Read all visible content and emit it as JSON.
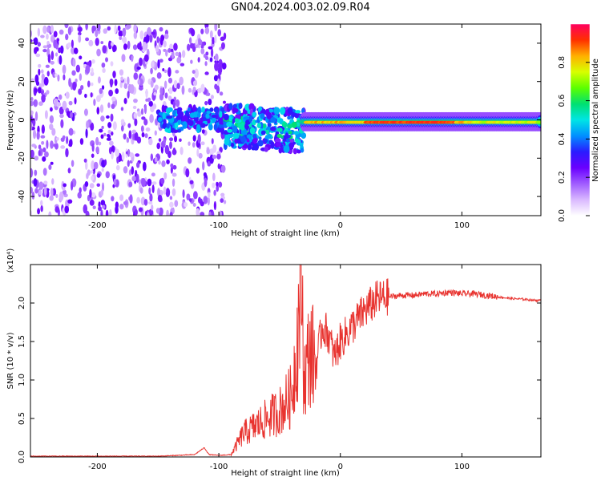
{
  "title": "GN04.2024.003.02.09.R04",
  "colors": {
    "snr_line": "#e8332f",
    "colormap": [
      "#ffffff",
      "#d9b8ff",
      "#a05cff",
      "#6a00ff",
      "#2a1bff",
      "#0090ff",
      "#00e5e5",
      "#00e070",
      "#5cff00",
      "#d8ff00",
      "#ffb000",
      "#ff3000",
      "#ff0060"
    ]
  },
  "chart_data": [
    {
      "type": "heatmap",
      "title": "GN04.2024.003.02.09.R04",
      "xlabel": "Height of straight line (km)",
      "ylabel": "Frequency (Hz)",
      "xlim": [
        -255,
        165
      ],
      "ylim": [
        -50,
        50
      ],
      "xticks": [
        -200,
        -100,
        0,
        100
      ],
      "yticks": [
        -40,
        -20,
        0,
        20,
        40
      ],
      "colorbar": {
        "label": "Normalized spectral amplitude",
        "range": [
          0,
          1
        ],
        "ticks": [
          0.0,
          0.2,
          0.4,
          0.6,
          0.8
        ]
      },
      "description_regions": [
        {
          "x_range": [
            -255,
            -95
          ],
          "pattern": "scattered noise, low amplitude",
          "amplitude": 0.15
        },
        {
          "x_range": [
            -150,
            -100
          ],
          "pattern": "weak clusters near 0 Hz",
          "amplitude": 0.35
        },
        {
          "x_range": [
            -95,
            -30
          ],
          "pattern": "clusters near 0 to -10 Hz",
          "amplitude": 0.45
        },
        {
          "x_range": [
            -30,
            165
          ],
          "pattern": "narrow band near -1 Hz",
          "amplitude": 0.85
        }
      ]
    },
    {
      "type": "line",
      "xlabel": "Height of straight line (km)",
      "ylabel": "SNR (10 * v/v)",
      "yscale_label": "(x10⁴)",
      "xlim": [
        -255,
        165
      ],
      "ylim": [
        0,
        2.5
      ],
      "xticks": [
        -200,
        -100,
        0,
        100
      ],
      "yticks": [
        0.0,
        0.5,
        1.0,
        1.5,
        2.0
      ],
      "series": [
        {
          "x": [
            -255,
            -200,
            -150,
            -120,
            -112,
            -108,
            -100,
            -90,
            -80,
            -70,
            -60,
            -50,
            -40,
            -35,
            -32,
            -30,
            -25,
            -20,
            -15,
            -10,
            -5,
            0,
            10,
            20,
            30,
            40,
            50,
            60,
            70,
            80,
            90,
            100,
            110,
            120,
            130,
            140,
            150,
            165
          ],
          "y": [
            0.01,
            0.01,
            0.01,
            0.03,
            0.12,
            0.03,
            0.02,
            0.03,
            0.3,
            0.4,
            0.5,
            0.6,
            0.8,
            1.6,
            2.5,
            1.0,
            1.4,
            1.2,
            1.7,
            1.6,
            1.3,
            1.5,
            1.7,
            1.9,
            2.05,
            2.08,
            2.1,
            2.1,
            2.12,
            2.12,
            2.14,
            2.12,
            2.12,
            2.1,
            2.08,
            2.06,
            2.05,
            2.03
          ]
        }
      ]
    }
  ]
}
